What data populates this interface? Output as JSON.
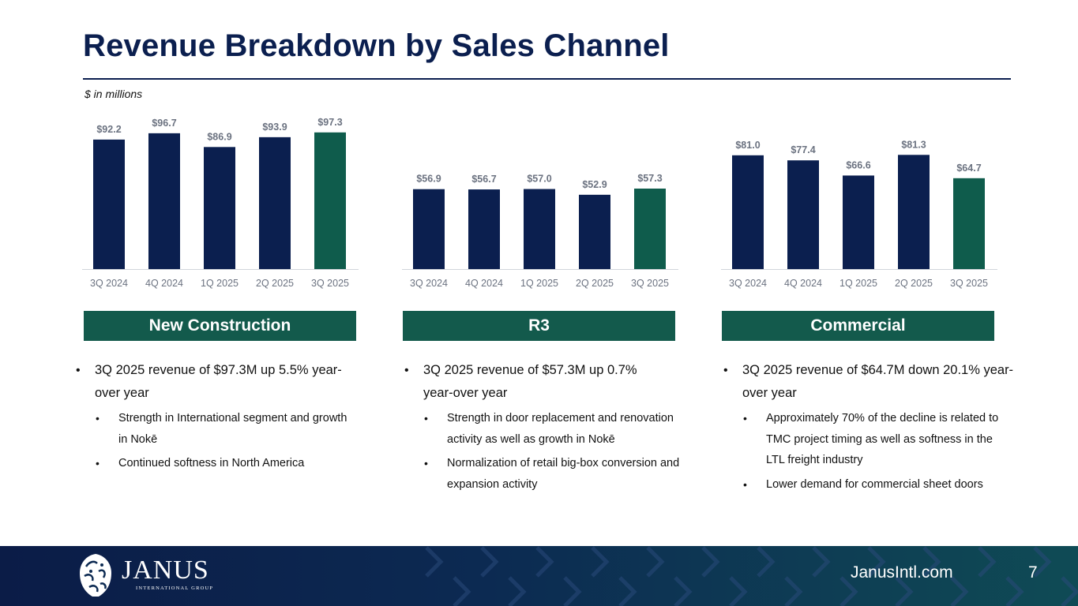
{
  "slide": {
    "title": "Revenue Breakdown by Sales Channel",
    "units": "$ in millions",
    "footer_url": "JanusIntl.com",
    "page_number": "7",
    "logo_name": "JANUS",
    "logo_subtitle": "INTERNATIONAL GROUP"
  },
  "colors": {
    "navy": "#0b1f4f",
    "green": "#135a4c",
    "bar_highlight": "#0f5c4c"
  },
  "panels": [
    {
      "header": "New Construction",
      "bullets": [
        {
          "text": "3Q 2025 revenue of $97.3M up 5.5% year-over year",
          "sub": [
            "Strength in International segment and growth in Nokē",
            "Continued softness in North America"
          ]
        }
      ]
    },
    {
      "header": "R3",
      "bullets": [
        {
          "text": "3Q 2025 revenue of $57.3M up 0.7% year-over year",
          "sub": [
            "Strength in door replacement and renovation activity as well as growth in Nokē",
            "Normalization of retail big-box conversion and expansion activity"
          ]
        }
      ]
    },
    {
      "header": "Commercial",
      "bullets": [
        {
          "text": "3Q 2025 revenue of $64.7M down 20.1% year-over year",
          "sub": [
            "Approximately 70% of the decline is related to TMC project timing as well as softness in the  LTL freight industry",
            "Lower demand for commercial sheet doors"
          ]
        }
      ]
    }
  ],
  "chart_data": [
    {
      "type": "bar",
      "categories": [
        "3Q 2024",
        "4Q 2024",
        "1Q 2025",
        "2Q 2025",
        "3Q 2025"
      ],
      "values": [
        92.2,
        96.7,
        86.9,
        93.9,
        97.3
      ],
      "data_labels": [
        "$92.2",
        "$96.7",
        "$86.9",
        "$93.9",
        "$97.3"
      ],
      "highlight_index": 4,
      "ylim": [
        0,
        100
      ]
    },
    {
      "type": "bar",
      "categories": [
        "3Q 2024",
        "4Q 2024",
        "1Q 2025",
        "2Q 2025",
        "3Q 2025"
      ],
      "values": [
        56.9,
        56.7,
        57.0,
        52.9,
        57.3
      ],
      "data_labels": [
        "$56.9",
        "$56.7",
        "$57.0",
        "$52.9",
        "$57.3"
      ],
      "highlight_index": 4,
      "ylim": [
        0,
        100
      ]
    },
    {
      "type": "bar",
      "categories": [
        "3Q 2024",
        "4Q 2024",
        "1Q 2025",
        "2Q 2025",
        "3Q 2025"
      ],
      "values": [
        81.0,
        77.4,
        66.6,
        81.3,
        64.7
      ],
      "data_labels": [
        "$81.0",
        "$77.4",
        "$66.6",
        "$81.3",
        "$64.7"
      ],
      "highlight_index": 4,
      "ylim": [
        0,
        100
      ]
    }
  ]
}
